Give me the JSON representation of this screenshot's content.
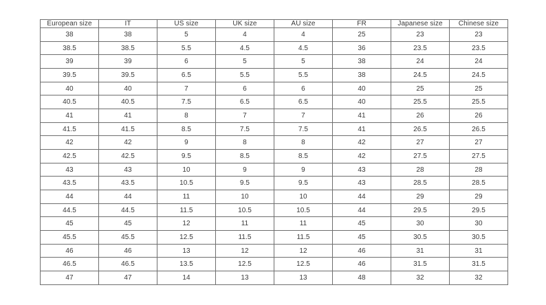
{
  "chart_data": {
    "type": "table",
    "columns": [
      "European size",
      "IT",
      "US size",
      "UK size",
      "AU size",
      "FR",
      "Japanese size",
      "Chinese size"
    ],
    "rows": [
      [
        "38",
        "38",
        "5",
        "4",
        "4",
        "25",
        "23",
        "23"
      ],
      [
        "38.5",
        "38.5",
        "5.5",
        "4.5",
        "4.5",
        "36",
        "23.5",
        "23.5"
      ],
      [
        "39",
        "39",
        "6",
        "5",
        "5",
        "38",
        "24",
        "24"
      ],
      [
        "39.5",
        "39.5",
        "6.5",
        "5.5",
        "5.5",
        "38",
        "24.5",
        "24.5"
      ],
      [
        "40",
        "40",
        "7",
        "6",
        "6",
        "40",
        "25",
        "25"
      ],
      [
        "40.5",
        "40.5",
        "7.5",
        "6.5",
        "6.5",
        "40",
        "25.5",
        "25.5"
      ],
      [
        "41",
        "41",
        "8",
        "7",
        "7",
        "41",
        "26",
        "26"
      ],
      [
        "41.5",
        "41.5",
        "8.5",
        "7.5",
        "7.5",
        "41",
        "26.5",
        "26.5"
      ],
      [
        "42",
        "42",
        "9",
        "8",
        "8",
        "42",
        "27",
        "27"
      ],
      [
        "42.5",
        "42.5",
        "9.5",
        "8.5",
        "8.5",
        "42",
        "27.5",
        "27.5"
      ],
      [
        "43",
        "43",
        "10",
        "9",
        "9",
        "43",
        "28",
        "28"
      ],
      [
        "43.5",
        "43.5",
        "10.5",
        "9.5",
        "9.5",
        "43",
        "28.5",
        "28.5"
      ],
      [
        "44",
        "44",
        "11",
        "10",
        "10",
        "44",
        "29",
        "29"
      ],
      [
        "44.5",
        "44.5",
        "11.5",
        "10.5",
        "10.5",
        "44",
        "29.5",
        "29.5"
      ],
      [
        "45",
        "45",
        "12",
        "11",
        "11",
        "45",
        "30",
        "30"
      ],
      [
        "45.5",
        "45.5",
        "12.5",
        "11.5",
        "11.5",
        "45",
        "30.5",
        "30.5"
      ],
      [
        "46",
        "46",
        "13",
        "12",
        "12",
        "46",
        "31",
        "31"
      ],
      [
        "46.5",
        "46.5",
        "13.5",
        "12.5",
        "12.5",
        "46",
        "31.5",
        "31.5"
      ],
      [
        "47",
        "47",
        "14",
        "13",
        "13",
        "48",
        "32",
        "32"
      ]
    ]
  },
  "colors": {
    "background": "#ffffff",
    "border": "#6e6e6e",
    "text": "#383838"
  }
}
